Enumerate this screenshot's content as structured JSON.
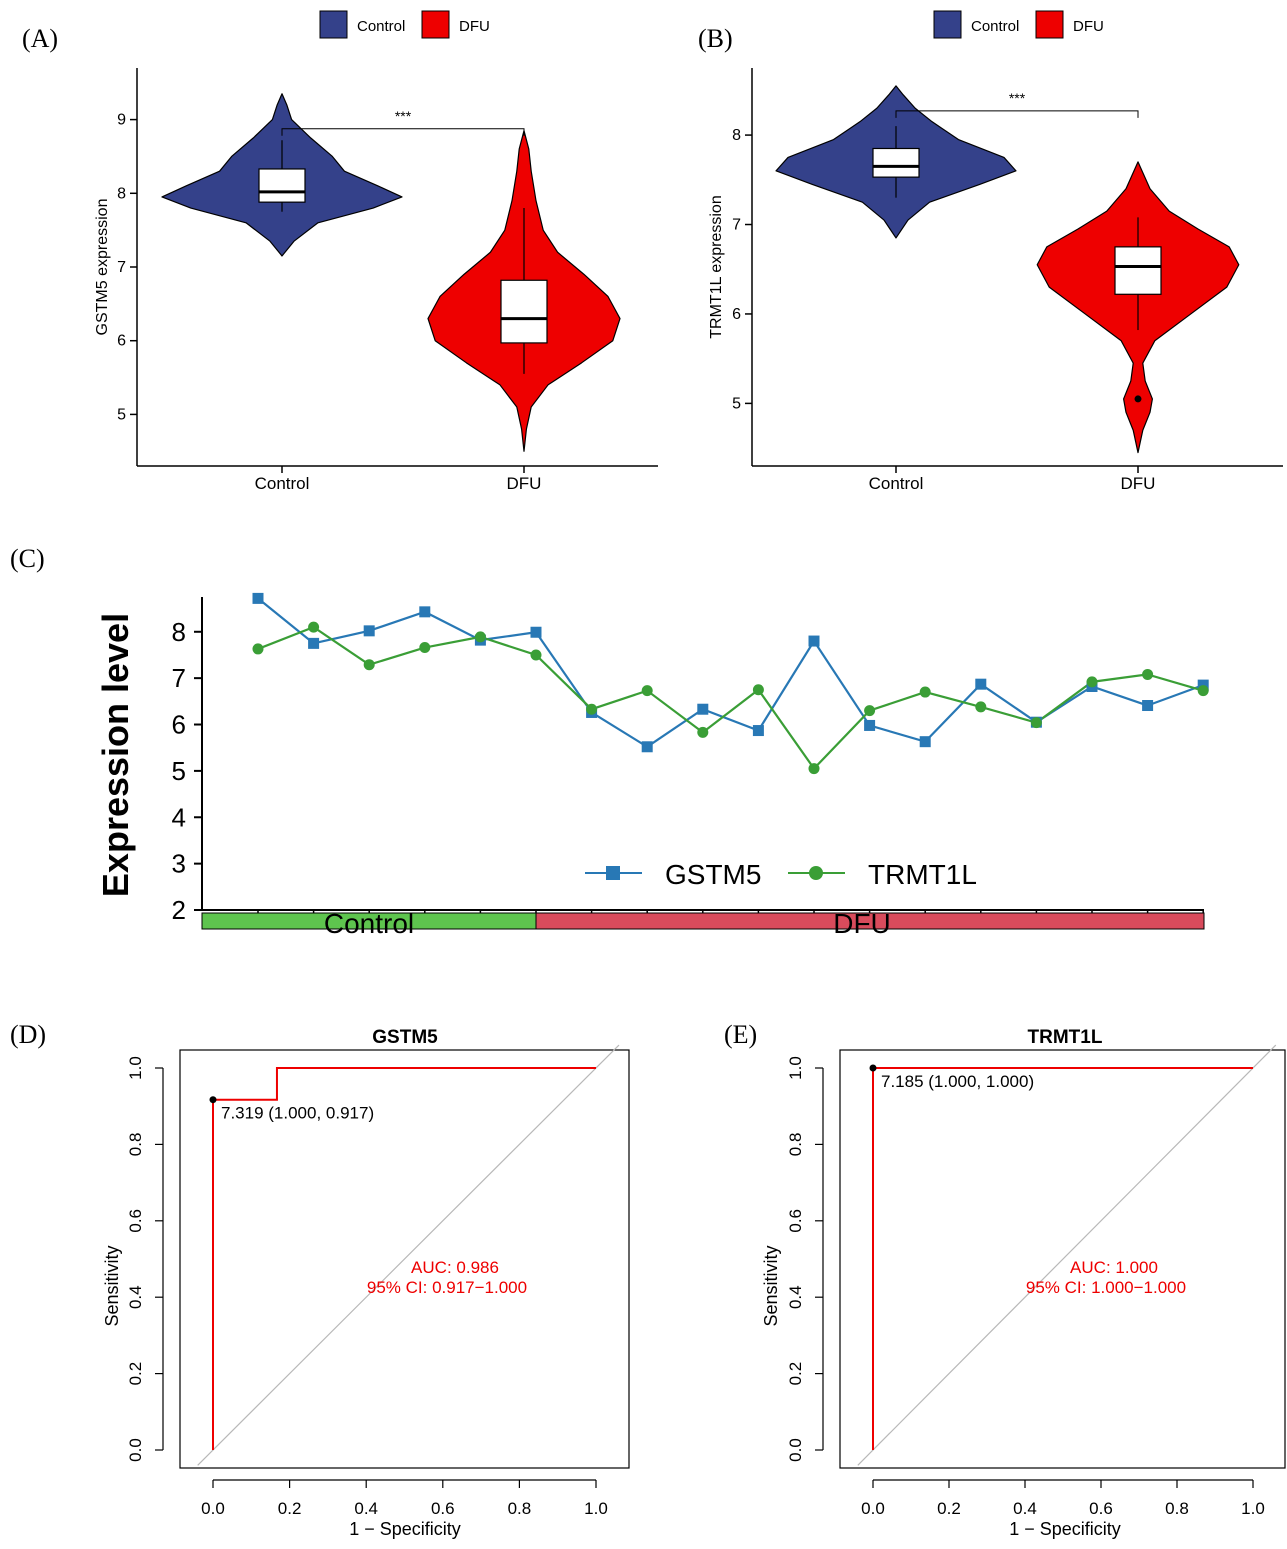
{
  "colors": {
    "control": "#34418a",
    "dfu": "#ee0000",
    "gstm5_line": "#2878b5",
    "trmt1l_line": "#3a9e36",
    "group_bar_control": "#5ec44e",
    "group_bar_dfu": "#d94b5c",
    "roc": "#ee0000",
    "diagonal": "#b8b8b8"
  },
  "panels": {
    "A": {
      "tag": "(A)"
    },
    "B": {
      "tag": "(B)"
    },
    "C": {
      "tag": "(C)"
    },
    "D": {
      "tag": "(D)"
    },
    "E": {
      "tag": "(E)"
    }
  },
  "chart_data": [
    {
      "id": "A",
      "type": "violin",
      "ylabel": "GSTM5 expression",
      "legend": [
        "Control",
        "DFU"
      ],
      "legend_position": "top",
      "categories": [
        "Control",
        "DFU"
      ],
      "yticks": [
        5,
        6,
        7,
        8,
        9
      ],
      "ylim": [
        4.3,
        9.7
      ],
      "significance": "***",
      "groups": [
        {
          "name": "Control",
          "min": 7.15,
          "max": 9.35,
          "whisker_low": 7.75,
          "q1": 7.88,
          "median": 8.02,
          "q3": 8.33,
          "whisker_high": 8.72,
          "density": [
            [
              7.15,
              0.0
            ],
            [
              7.35,
              0.05
            ],
            [
              7.6,
              0.15
            ],
            [
              7.8,
              0.38
            ],
            [
              7.95,
              0.5
            ],
            [
              8.1,
              0.4
            ],
            [
              8.3,
              0.26
            ],
            [
              8.5,
              0.21
            ],
            [
              8.75,
              0.12
            ],
            [
              9.0,
              0.04
            ],
            [
              9.2,
              0.02
            ],
            [
              9.35,
              0.0
            ]
          ]
        },
        {
          "name": "DFU",
          "min": 4.5,
          "max": 8.85,
          "whisker_low": 5.55,
          "q1": 5.97,
          "median": 6.3,
          "q3": 6.82,
          "whisker_high": 7.8,
          "density": [
            [
              4.5,
              0.0
            ],
            [
              4.8,
              0.01
            ],
            [
              5.1,
              0.03
            ],
            [
              5.4,
              0.1
            ],
            [
              5.7,
              0.24
            ],
            [
              6.0,
              0.37
            ],
            [
              6.3,
              0.4
            ],
            [
              6.6,
              0.35
            ],
            [
              6.9,
              0.25
            ],
            [
              7.2,
              0.14
            ],
            [
              7.5,
              0.08
            ],
            [
              7.9,
              0.05
            ],
            [
              8.3,
              0.03
            ],
            [
              8.6,
              0.02
            ],
            [
              8.85,
              0.0
            ]
          ]
        }
      ]
    },
    {
      "id": "B",
      "type": "violin",
      "ylabel": "TRMT1L expression",
      "legend": [
        "Control",
        "DFU"
      ],
      "legend_position": "top",
      "categories": [
        "Control",
        "DFU"
      ],
      "yticks": [
        5,
        6,
        7,
        8
      ],
      "ylim": [
        4.3,
        8.75
      ],
      "significance": "***",
      "groups": [
        {
          "name": "Control",
          "min": 6.85,
          "max": 8.55,
          "whisker_low": 7.3,
          "q1": 7.53,
          "median": 7.65,
          "q3": 7.85,
          "whisker_high": 8.1,
          "density": [
            [
              6.85,
              0.0
            ],
            [
              7.05,
              0.05
            ],
            [
              7.25,
              0.14
            ],
            [
              7.45,
              0.35
            ],
            [
              7.6,
              0.5
            ],
            [
              7.75,
              0.45
            ],
            [
              7.95,
              0.26
            ],
            [
              8.15,
              0.15
            ],
            [
              8.3,
              0.08
            ],
            [
              8.45,
              0.03
            ],
            [
              8.55,
              0.0
            ]
          ]
        },
        {
          "name": "DFU",
          "min": 4.45,
          "max": 7.7,
          "whisker_low": 5.82,
          "q1": 6.22,
          "median": 6.53,
          "q3": 6.75,
          "whisker_high": 7.08,
          "outliers": [
            5.05
          ],
          "density": [
            [
              4.45,
              0.0
            ],
            [
              4.7,
              0.02
            ],
            [
              4.9,
              0.05
            ],
            [
              5.05,
              0.06
            ],
            [
              5.25,
              0.03
            ],
            [
              5.45,
              0.02
            ],
            [
              5.7,
              0.07
            ],
            [
              6.0,
              0.22
            ],
            [
              6.3,
              0.37
            ],
            [
              6.55,
              0.42
            ],
            [
              6.75,
              0.38
            ],
            [
              6.95,
              0.25
            ],
            [
              7.15,
              0.13
            ],
            [
              7.4,
              0.05
            ],
            [
              7.7,
              0.0
            ]
          ]
        }
      ]
    },
    {
      "id": "C",
      "type": "line",
      "ylabel": "Expression level",
      "yticks": [
        2,
        3,
        4,
        5,
        6,
        7,
        8
      ],
      "ylim": [
        2,
        8.75
      ],
      "legend_position": "bottom-center inside",
      "groups": [
        {
          "name": "Control",
          "count": 6
        },
        {
          "name": "DFU",
          "count": 12
        }
      ],
      "series": [
        {
          "name": "GSTM5",
          "marker": "square",
          "values": [
            8.72,
            7.75,
            8.02,
            8.43,
            7.82,
            7.99,
            6.26,
            5.52,
            6.33,
            5.87,
            7.8,
            5.98,
            5.63,
            6.87,
            6.05,
            6.82,
            6.41,
            6.85
          ]
        },
        {
          "name": "TRMT1L",
          "marker": "circle",
          "values": [
            7.63,
            8.1,
            7.29,
            7.66,
            7.89,
            7.5,
            6.33,
            6.73,
            5.83,
            6.75,
            5.05,
            6.3,
            6.7,
            6.38,
            6.04,
            6.92,
            7.08,
            6.73
          ]
        }
      ]
    },
    {
      "id": "D",
      "type": "roc",
      "title": "GSTM5",
      "xlabel": "1 − Specificity",
      "ylabel": "Sensitivity",
      "xticks": [
        "0.0",
        "0.2",
        "0.4",
        "0.6",
        "0.8",
        "1.0"
      ],
      "yticks": [
        "0.0",
        "0.2",
        "0.4",
        "0.6",
        "0.8",
        "1.0"
      ],
      "curve": [
        [
          0,
          0
        ],
        [
          0,
          0.917
        ],
        [
          0.167,
          0.917
        ],
        [
          0.167,
          1.0
        ],
        [
          1.0,
          1.0
        ]
      ],
      "best_point": {
        "x": 0,
        "y": 0.917,
        "label": "7.319 (1.000, 0.917)"
      },
      "auc_label": "AUC: 0.986",
      "ci_label": "95% CI: 0.917−1.000"
    },
    {
      "id": "E",
      "type": "roc",
      "title": "TRMT1L",
      "xlabel": "1 − Specificity",
      "ylabel": "Sensitivity",
      "xticks": [
        "0.0",
        "0.2",
        "0.4",
        "0.6",
        "0.8",
        "1.0"
      ],
      "yticks": [
        "0.0",
        "0.2",
        "0.4",
        "0.6",
        "0.8",
        "1.0"
      ],
      "curve": [
        [
          0,
          0
        ],
        [
          0,
          1.0
        ],
        [
          1.0,
          1.0
        ]
      ],
      "best_point": {
        "x": 0,
        "y": 1.0,
        "label": "7.185 (1.000, 1.000)"
      },
      "auc_label": "AUC: 1.000",
      "ci_label": "95% CI: 1.000−1.000"
    }
  ]
}
